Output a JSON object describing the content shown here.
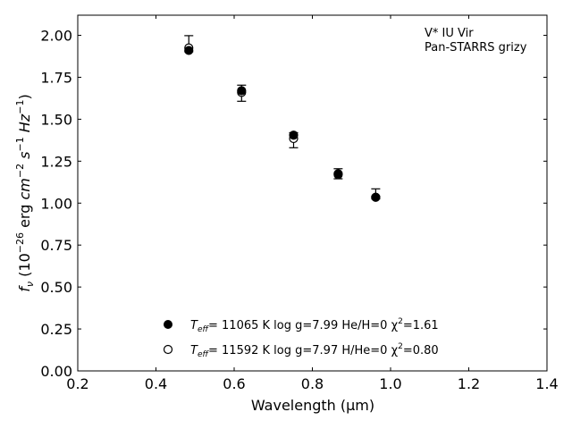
{
  "chart_data": {
    "type": "scatter",
    "xlabel": "Wavelength (μm)",
    "ylabel": "f_ν (10^−26 erg cm^−2 s^−1 Hz^−1)",
    "xlim": [
      0.2,
      1.4
    ],
    "ylim": [
      0.0,
      2.12
    ],
    "xticks": [
      "0.2",
      "0.4",
      "0.6",
      "0.8",
      "1.0",
      "1.2",
      "1.4"
    ],
    "yticks": [
      "0.00",
      "0.25",
      "0.50",
      "0.75",
      "1.00",
      "1.25",
      "1.50",
      "1.75",
      "2.00"
    ],
    "grid": false,
    "legend_position": "bottom-center",
    "annotations": [
      "V* IU Vir",
      "Pan-STARRS grizy"
    ],
    "observed": {
      "x": [
        0.484,
        0.619,
        0.752,
        0.866,
        0.962
      ],
      "y": [
        1.95,
        1.655,
        1.375,
        1.175,
        1.055
      ],
      "err": [
        0.048,
        0.048,
        0.045,
        0.03,
        0.03
      ]
    },
    "series": [
      {
        "name": "T_eff= 11065 K  log g=7.99  He/H=0  χ²=1.61",
        "marker": "filled-circle",
        "x": [
          0.484,
          0.619,
          0.752,
          0.866,
          0.962
        ],
        "y": [
          1.91,
          1.67,
          1.405,
          1.175,
          1.035
        ]
      },
      {
        "name": "T_eff= 11592 K  log g=7.97  H/He=0  χ²=0.80",
        "marker": "open-circle",
        "x": [
          0.484,
          0.619,
          0.752,
          0.866,
          0.962
        ],
        "y": [
          1.925,
          1.66,
          1.385,
          1.17,
          1.035
        ]
      }
    ],
    "legend": [
      {
        "teff_label": "T",
        "teff_sub": "eff",
        "text": "= 11065 K  log g=7.99  He/H=0  χ",
        "chi_sup": "2",
        "chi_val": "=1.61"
      },
      {
        "teff_label": "T",
        "teff_sub": "eff",
        "text": "= 11592 K  log g=7.97  H/He=0  χ",
        "chi_sup": "2",
        "chi_val": "=0.80"
      }
    ],
    "colors": {
      "marker": "#000000",
      "axes": "#000000",
      "background": "#ffffff"
    }
  }
}
